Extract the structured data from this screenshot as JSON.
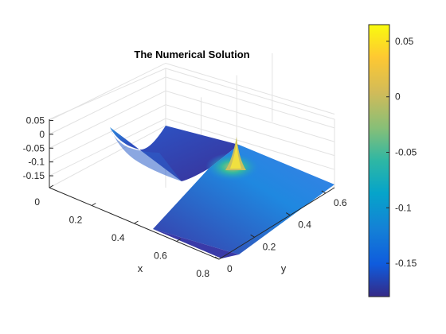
{
  "chart_data": {
    "type": "surface",
    "title": "The Numerical Solution",
    "xlabel": "x",
    "ylabel": "y",
    "zlabel": "",
    "xlim": [
      0,
      0.8
    ],
    "ylim": [
      0,
      0.65
    ],
    "zlim": [
      -0.17,
      0.06
    ],
    "x_ticks": [
      "0",
      "0.2",
      "0.4",
      "0.6",
      "0.8"
    ],
    "y_ticks": [
      "0",
      "0.2",
      "0.4",
      "0.6"
    ],
    "z_ticks": [
      "0.05",
      "0",
      "-0.05",
      "-0.1",
      "-0.15"
    ],
    "grid": true,
    "colormap": "parula",
    "colorbar": {
      "ticks": [
        "0.05",
        "0",
        "-0.05",
        "-0.1",
        "-0.15"
      ],
      "range": [
        -0.18,
        0.065
      ]
    },
    "domain": "L-shaped: unit region with the quadrant x>0.4, y<0.3 removed",
    "features": {
      "peak": {
        "x": 0.4,
        "y": 0.3,
        "z": 0.06
      },
      "edge_value_min": -0.17,
      "corner_value_at_x0_y0": 0.0
    }
  },
  "colors": {
    "background": "#ffffff",
    "axis": "#262626",
    "grid": "#dcdcdc"
  }
}
